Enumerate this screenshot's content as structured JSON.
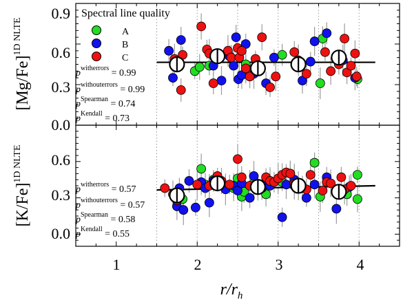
{
  "chart_data": [
    {
      "type": "scatter",
      "panel": "top",
      "ylabel_main": "[Mg/Fe]",
      "ylabel_sup": "1D NLTE",
      "ylim": [
        0.0,
        0.9
      ],
      "yticks": [
        "0.9",
        "0.6",
        "0.3",
        "0.0"
      ],
      "trend_line": {
        "x": [
          1.5,
          4.2
        ],
        "y": [
          0.465,
          0.465
        ]
      },
      "legend": {
        "title": "Spectral line quality",
        "position": "top-left",
        "entries": [
          {
            "label": "A",
            "color": "#22dd22"
          },
          {
            "label": "B",
            "color": "#1111ee"
          },
          {
            "label": "C",
            "color": "#ee1111"
          }
        ]
      },
      "stats": [
        {
          "sup": "witherrors",
          "value": " = 0.99"
        },
        {
          "sup": "withouterrors",
          "value": " = 0.99"
        },
        {
          "sup": "Spearman",
          "value": " = 0.74"
        },
        {
          "sup": "Kendall",
          "value": " = 0.73"
        }
      ],
      "binned_means": {
        "x": [
          1.75,
          2.25,
          2.75,
          3.25,
          3.75
        ],
        "y": [
          0.45,
          0.51,
          0.42,
          0.45,
          0.5
        ]
      },
      "series": [
        {
          "name": "A",
          "color": "#22dd22",
          "points": [
            [
              1.97,
              0.4
            ],
            [
              2.03,
              0.43
            ],
            [
              2.15,
              0.44
            ],
            [
              2.6,
              0.45
            ],
            [
              3.05,
              0.52
            ],
            [
              3.52,
              0.31
            ],
            [
              3.55,
              0.64
            ],
            [
              3.98,
              0.34
            ]
          ]
        },
        {
          "name": "B",
          "color": "#1111ee",
          "points": [
            [
              1.65,
              0.55
            ],
            [
              1.7,
              0.35
            ],
            [
              1.8,
              0.63
            ],
            [
              2.2,
              0.44
            ],
            [
              2.3,
              0.33
            ],
            [
              2.4,
              0.51
            ],
            [
              2.45,
              0.44
            ],
            [
              2.48,
              0.65
            ],
            [
              2.51,
              0.34
            ],
            [
              2.55,
              0.37
            ],
            [
              2.6,
              0.6
            ],
            [
              2.7,
              0.38
            ],
            [
              2.85,
              0.31
            ],
            [
              2.95,
              0.5
            ],
            [
              3.3,
              0.33
            ],
            [
              3.4,
              0.47
            ],
            [
              3.45,
              0.62
            ],
            [
              3.6,
              0.68
            ],
            [
              3.8,
              0.48
            ],
            [
              3.95,
              0.35
            ]
          ]
        },
        {
          "name": "C",
          "color": "#ee1111",
          "points": [
            [
              1.72,
              0.49
            ],
            [
              1.8,
              0.26
            ],
            [
              1.82,
              0.52
            ],
            [
              2.05,
              0.73
            ],
            [
              2.12,
              0.56
            ],
            [
              2.15,
              0.53
            ],
            [
              2.2,
              0.31
            ],
            [
              2.38,
              0.55
            ],
            [
              2.42,
              0.5
            ],
            [
              2.5,
              0.57
            ],
            [
              2.52,
              0.5
            ],
            [
              2.55,
              0.55
            ],
            [
              2.6,
              0.42
            ],
            [
              2.65,
              0.36
            ],
            [
              2.72,
              0.49
            ],
            [
              2.8,
              0.65
            ],
            [
              2.9,
              0.28
            ],
            [
              2.97,
              0.36
            ],
            [
              3.2,
              0.54
            ],
            [
              3.25,
              0.48
            ],
            [
              3.35,
              0.38
            ],
            [
              3.58,
              0.54
            ],
            [
              3.65,
              0.4
            ],
            [
              3.75,
              0.45
            ],
            [
              3.82,
              0.64
            ],
            [
              3.85,
              0.39
            ],
            [
              3.9,
              0.44
            ],
            [
              3.95,
              0.53
            ],
            [
              3.97,
              0.36
            ]
          ]
        }
      ]
    },
    {
      "type": "scatter",
      "panel": "bottom",
      "ylabel_main": "[K/Fe]",
      "ylabel_sup": "1D NLTE",
      "ylim": [
        -0.1,
        0.9
      ],
      "yticks": [
        "0.6",
        "0.3",
        "0.0"
      ],
      "xlabel_main": "r/r",
      "xlabel_sub": "h",
      "xlim": [
        0.5,
        4.5
      ],
      "xticks": [
        "1",
        "2",
        "3",
        "4"
      ],
      "trend_line": {
        "x": [
          1.5,
          4.2
        ],
        "y": [
          0.365,
          0.4
        ]
      },
      "stats": [
        {
          "sup": "witherrors",
          "value": " = 0.57"
        },
        {
          "sup": "withouterrors",
          "value": " = 0.57"
        },
        {
          "sup": "Spearman",
          "value": " = 0.58"
        },
        {
          "sup": "Kendall",
          "value": " = 0.55"
        }
      ],
      "binned_means": {
        "x": [
          1.75,
          2.25,
          2.75,
          3.25,
          3.75
        ],
        "y": [
          0.32,
          0.42,
          0.39,
          0.4,
          0.35
        ]
      },
      "series": [
        {
          "name": "A",
          "color": "#22dd22",
          "points": [
            [
              1.82,
              0.29
            ],
            [
              2.05,
              0.54
            ],
            [
              2.1,
              0.41
            ],
            [
              2.2,
              0.45
            ],
            [
              2.45,
              0.38
            ],
            [
              2.5,
              0.46
            ],
            [
              2.55,
              0.31
            ],
            [
              2.58,
              0.35
            ],
            [
              2.7,
              0.42
            ],
            [
              2.85,
              0.33
            ],
            [
              3.05,
              0.43
            ],
            [
              3.2,
              0.4
            ],
            [
              3.45,
              0.59
            ],
            [
              3.52,
              0.31
            ],
            [
              3.85,
              0.33
            ],
            [
              3.98,
              0.49
            ],
            [
              3.98,
              0.29
            ]
          ]
        },
        {
          "name": "B",
          "color": "#1111ee",
          "points": [
            [
              1.75,
              0.23
            ],
            [
              1.78,
              0.38
            ],
            [
              1.83,
              0.2
            ],
            [
              1.9,
              0.44
            ],
            [
              1.98,
              0.22
            ],
            [
              2.05,
              0.43
            ],
            [
              2.1,
              0.38
            ],
            [
              2.15,
              0.26
            ],
            [
              2.2,
              0.44
            ],
            [
              2.35,
              0.37
            ],
            [
              2.45,
              0.4
            ],
            [
              2.5,
              0.36
            ],
            [
              2.55,
              0.42
            ],
            [
              2.65,
              0.3
            ],
            [
              2.7,
              0.48
            ],
            [
              2.8,
              0.38
            ],
            [
              2.85,
              0.43
            ],
            [
              2.9,
              0.4
            ],
            [
              3.05,
              0.14
            ],
            [
              3.1,
              0.41
            ],
            [
              3.15,
              0.5
            ],
            [
              3.2,
              0.45
            ],
            [
              3.3,
              0.38
            ],
            [
              3.35,
              0.3
            ],
            [
              3.45,
              0.41
            ],
            [
              3.6,
              0.47
            ],
            [
              3.72,
              0.21
            ],
            [
              3.88,
              0.39
            ]
          ]
        },
        {
          "name": "C",
          "color": "#ee1111",
          "points": [
            [
              1.6,
              0.38
            ],
            [
              1.7,
              0.33
            ],
            [
              1.75,
              0.28
            ],
            [
              2.0,
              0.41
            ],
            [
              2.15,
              0.4
            ],
            [
              2.25,
              0.48
            ],
            [
              2.3,
              0.44
            ],
            [
              2.4,
              0.41
            ],
            [
              2.5,
              0.62
            ],
            [
              2.55,
              0.47
            ],
            [
              2.65,
              0.4
            ],
            [
              2.75,
              0.38
            ],
            [
              2.85,
              0.47
            ],
            [
              2.9,
              0.44
            ],
            [
              2.95,
              0.43
            ],
            [
              3.0,
              0.46
            ],
            [
              3.05,
              0.49
            ],
            [
              3.1,
              0.51
            ],
            [
              3.15,
              0.5
            ],
            [
              3.2,
              0.42
            ],
            [
              3.25,
              0.4
            ],
            [
              3.35,
              0.37
            ],
            [
              3.4,
              0.49
            ],
            [
              3.55,
              0.36
            ],
            [
              3.6,
              0.43
            ],
            [
              3.65,
              0.42
            ],
            [
              3.78,
              0.47
            ],
            [
              3.82,
              0.37
            ],
            [
              3.9,
              0.4
            ]
          ]
        }
      ]
    }
  ]
}
